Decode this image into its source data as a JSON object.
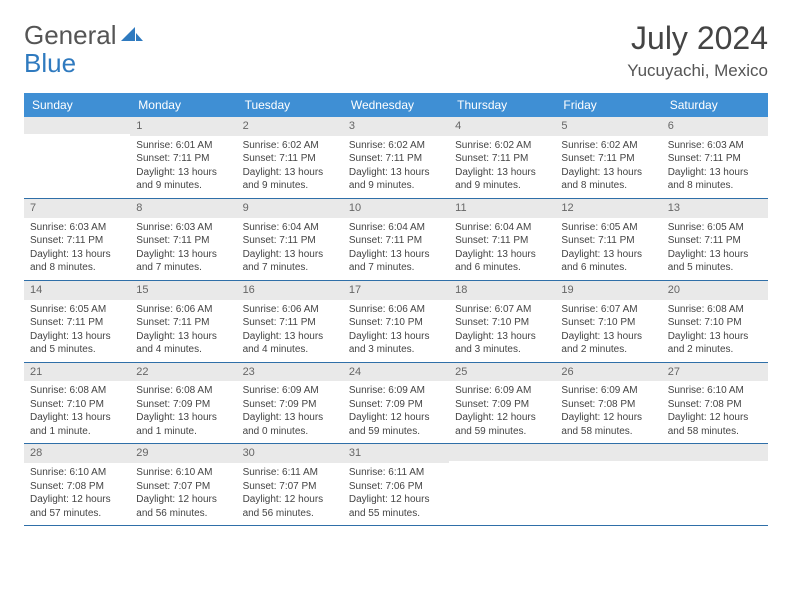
{
  "logo": {
    "text1": "General",
    "text2": "Blue"
  },
  "title": "July 2024",
  "location": "Yucuyachi, Mexico",
  "colors": {
    "header_bg": "#3f8fd4",
    "header_text": "#ffffff",
    "date_bg": "#e9e9e9",
    "date_text": "#666666",
    "body_text": "#444444",
    "rule": "#2f6fa8",
    "logo_gray": "#555555",
    "logo_blue": "#2f7abf"
  },
  "day_names": [
    "Sunday",
    "Monday",
    "Tuesday",
    "Wednesday",
    "Thursday",
    "Friday",
    "Saturday"
  ],
  "weeks": [
    [
      {
        "date": "",
        "sunrise": "",
        "sunset": "",
        "daylight": ""
      },
      {
        "date": "1",
        "sunrise": "Sunrise: 6:01 AM",
        "sunset": "Sunset: 7:11 PM",
        "daylight": "Daylight: 13 hours and 9 minutes."
      },
      {
        "date": "2",
        "sunrise": "Sunrise: 6:02 AM",
        "sunset": "Sunset: 7:11 PM",
        "daylight": "Daylight: 13 hours and 9 minutes."
      },
      {
        "date": "3",
        "sunrise": "Sunrise: 6:02 AM",
        "sunset": "Sunset: 7:11 PM",
        "daylight": "Daylight: 13 hours and 9 minutes."
      },
      {
        "date": "4",
        "sunrise": "Sunrise: 6:02 AM",
        "sunset": "Sunset: 7:11 PM",
        "daylight": "Daylight: 13 hours and 9 minutes."
      },
      {
        "date": "5",
        "sunrise": "Sunrise: 6:02 AM",
        "sunset": "Sunset: 7:11 PM",
        "daylight": "Daylight: 13 hours and 8 minutes."
      },
      {
        "date": "6",
        "sunrise": "Sunrise: 6:03 AM",
        "sunset": "Sunset: 7:11 PM",
        "daylight": "Daylight: 13 hours and 8 minutes."
      }
    ],
    [
      {
        "date": "7",
        "sunrise": "Sunrise: 6:03 AM",
        "sunset": "Sunset: 7:11 PM",
        "daylight": "Daylight: 13 hours and 8 minutes."
      },
      {
        "date": "8",
        "sunrise": "Sunrise: 6:03 AM",
        "sunset": "Sunset: 7:11 PM",
        "daylight": "Daylight: 13 hours and 7 minutes."
      },
      {
        "date": "9",
        "sunrise": "Sunrise: 6:04 AM",
        "sunset": "Sunset: 7:11 PM",
        "daylight": "Daylight: 13 hours and 7 minutes."
      },
      {
        "date": "10",
        "sunrise": "Sunrise: 6:04 AM",
        "sunset": "Sunset: 7:11 PM",
        "daylight": "Daylight: 13 hours and 7 minutes."
      },
      {
        "date": "11",
        "sunrise": "Sunrise: 6:04 AM",
        "sunset": "Sunset: 7:11 PM",
        "daylight": "Daylight: 13 hours and 6 minutes."
      },
      {
        "date": "12",
        "sunrise": "Sunrise: 6:05 AM",
        "sunset": "Sunset: 7:11 PM",
        "daylight": "Daylight: 13 hours and 6 minutes."
      },
      {
        "date": "13",
        "sunrise": "Sunrise: 6:05 AM",
        "sunset": "Sunset: 7:11 PM",
        "daylight": "Daylight: 13 hours and 5 minutes."
      }
    ],
    [
      {
        "date": "14",
        "sunrise": "Sunrise: 6:05 AM",
        "sunset": "Sunset: 7:11 PM",
        "daylight": "Daylight: 13 hours and 5 minutes."
      },
      {
        "date": "15",
        "sunrise": "Sunrise: 6:06 AM",
        "sunset": "Sunset: 7:11 PM",
        "daylight": "Daylight: 13 hours and 4 minutes."
      },
      {
        "date": "16",
        "sunrise": "Sunrise: 6:06 AM",
        "sunset": "Sunset: 7:11 PM",
        "daylight": "Daylight: 13 hours and 4 minutes."
      },
      {
        "date": "17",
        "sunrise": "Sunrise: 6:06 AM",
        "sunset": "Sunset: 7:10 PM",
        "daylight": "Daylight: 13 hours and 3 minutes."
      },
      {
        "date": "18",
        "sunrise": "Sunrise: 6:07 AM",
        "sunset": "Sunset: 7:10 PM",
        "daylight": "Daylight: 13 hours and 3 minutes."
      },
      {
        "date": "19",
        "sunrise": "Sunrise: 6:07 AM",
        "sunset": "Sunset: 7:10 PM",
        "daylight": "Daylight: 13 hours and 2 minutes."
      },
      {
        "date": "20",
        "sunrise": "Sunrise: 6:08 AM",
        "sunset": "Sunset: 7:10 PM",
        "daylight": "Daylight: 13 hours and 2 minutes."
      }
    ],
    [
      {
        "date": "21",
        "sunrise": "Sunrise: 6:08 AM",
        "sunset": "Sunset: 7:10 PM",
        "daylight": "Daylight: 13 hours and 1 minute."
      },
      {
        "date": "22",
        "sunrise": "Sunrise: 6:08 AM",
        "sunset": "Sunset: 7:09 PM",
        "daylight": "Daylight: 13 hours and 1 minute."
      },
      {
        "date": "23",
        "sunrise": "Sunrise: 6:09 AM",
        "sunset": "Sunset: 7:09 PM",
        "daylight": "Daylight: 13 hours and 0 minutes."
      },
      {
        "date": "24",
        "sunrise": "Sunrise: 6:09 AM",
        "sunset": "Sunset: 7:09 PM",
        "daylight": "Daylight: 12 hours and 59 minutes."
      },
      {
        "date": "25",
        "sunrise": "Sunrise: 6:09 AM",
        "sunset": "Sunset: 7:09 PM",
        "daylight": "Daylight: 12 hours and 59 minutes."
      },
      {
        "date": "26",
        "sunrise": "Sunrise: 6:09 AM",
        "sunset": "Sunset: 7:08 PM",
        "daylight": "Daylight: 12 hours and 58 minutes."
      },
      {
        "date": "27",
        "sunrise": "Sunrise: 6:10 AM",
        "sunset": "Sunset: 7:08 PM",
        "daylight": "Daylight: 12 hours and 58 minutes."
      }
    ],
    [
      {
        "date": "28",
        "sunrise": "Sunrise: 6:10 AM",
        "sunset": "Sunset: 7:08 PM",
        "daylight": "Daylight: 12 hours and 57 minutes."
      },
      {
        "date": "29",
        "sunrise": "Sunrise: 6:10 AM",
        "sunset": "Sunset: 7:07 PM",
        "daylight": "Daylight: 12 hours and 56 minutes."
      },
      {
        "date": "30",
        "sunrise": "Sunrise: 6:11 AM",
        "sunset": "Sunset: 7:07 PM",
        "daylight": "Daylight: 12 hours and 56 minutes."
      },
      {
        "date": "31",
        "sunrise": "Sunrise: 6:11 AM",
        "sunset": "Sunset: 7:06 PM",
        "daylight": "Daylight: 12 hours and 55 minutes."
      },
      {
        "date": "",
        "sunrise": "",
        "sunset": "",
        "daylight": ""
      },
      {
        "date": "",
        "sunrise": "",
        "sunset": "",
        "daylight": ""
      },
      {
        "date": "",
        "sunrise": "",
        "sunset": "",
        "daylight": ""
      }
    ]
  ]
}
